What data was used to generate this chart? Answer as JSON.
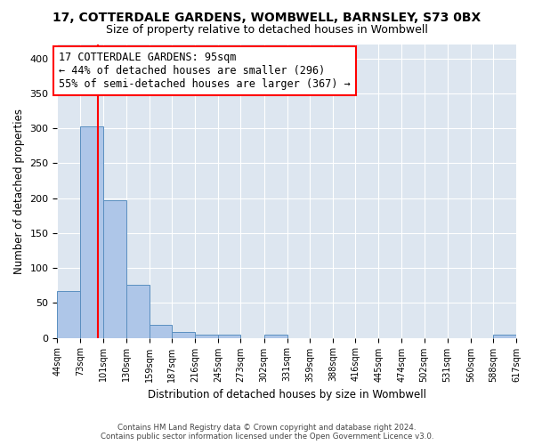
{
  "title": "17, COTTERDALE GARDENS, WOMBWELL, BARNSLEY, S73 0BX",
  "subtitle": "Size of property relative to detached houses in Wombwell",
  "xlabel": "Distribution of detached houses by size in Wombwell",
  "ylabel": "Number of detached properties",
  "footnote1": "Contains HM Land Registry data © Crown copyright and database right 2024.",
  "footnote2": "Contains public sector information licensed under the Open Government Licence v3.0.",
  "annotation_line1": "17 COTTERDALE GARDENS: 95sqm",
  "annotation_line2": "← 44% of detached houses are smaller (296)",
  "annotation_line3": "55% of semi-detached houses are larger (367) →",
  "property_size": 95,
  "bin_edges": [
    44,
    73,
    101,
    130,
    159,
    187,
    216,
    245,
    273,
    302,
    331,
    359,
    388,
    416,
    445,
    474,
    502,
    531,
    560,
    588,
    617
  ],
  "bar_heights": [
    67,
    303,
    197,
    76,
    18,
    9,
    5,
    5,
    0,
    5,
    0,
    0,
    0,
    0,
    0,
    0,
    0,
    0,
    0,
    4
  ],
  "bar_color": "#aec6e8",
  "bar_edge_color": "#5a8fc0",
  "red_line_x": 95,
  "ylim": [
    0,
    420
  ],
  "yticks": [
    0,
    50,
    100,
    150,
    200,
    250,
    300,
    350,
    400
  ],
  "axes_background": "#dde6f0",
  "grid_color": "#ffffff",
  "title_fontsize": 10,
  "subtitle_fontsize": 9,
  "xlabel_fontsize": 8.5,
  "ylabel_fontsize": 8.5,
  "annotation_fontsize": 8.5
}
